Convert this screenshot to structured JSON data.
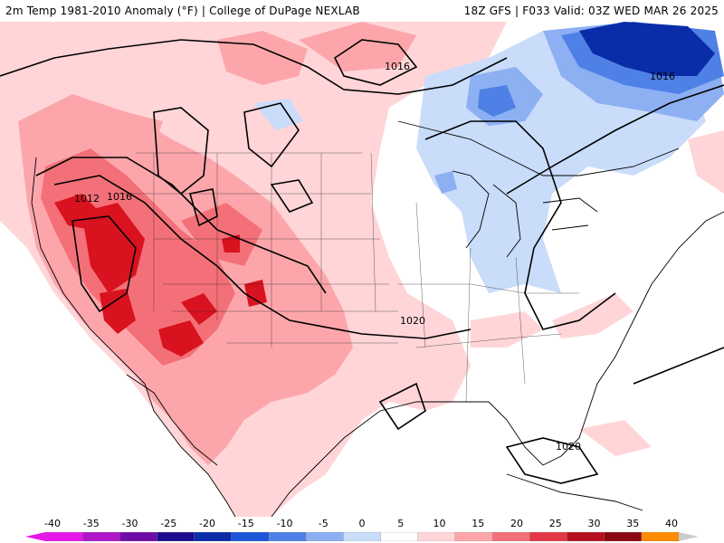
{
  "header": {
    "left": "2m Temp 1981-2010 Anomaly (°F) | College of DuPage NEXLAB",
    "right": "18Z GFS | F033 Valid: 03Z WED MAR 26 2025"
  },
  "isobar_labels": [
    "1016",
    "1016",
    "1012",
    "1016",
    "1020",
    "1020"
  ],
  "colorbar": {
    "ticks": [
      "-40",
      "-35",
      "-30",
      "-25",
      "-20",
      "-15",
      "-10",
      "-5",
      "0",
      "5",
      "10",
      "15",
      "20",
      "25",
      "30",
      "35",
      "40"
    ],
    "colors": [
      "#e617e6",
      "#b015c9",
      "#6f0ba8",
      "#1c0b8f",
      "#0a2ca8",
      "#1c55d6",
      "#4f80e6",
      "#8cb0f2",
      "#c9dcfa",
      "#ffffff",
      "#ffd5d8",
      "#fca6ab",
      "#f47078",
      "#e23845",
      "#b5101d",
      "#8a0610",
      "#ff8c00",
      "#ffc000",
      "#cccccc"
    ]
  },
  "colors": {
    "anomaly_warm_light": "#ffd5d8",
    "anomaly_warm_mid": "#fca6ab",
    "anomaly_warm_strong": "#f47078",
    "anomaly_warm_max": "#d9121f",
    "anomaly_cool_light": "#c9dcfa",
    "anomaly_cool_mid": "#8cb0f2",
    "anomaly_cool_strong": "#4f80e6",
    "anomaly_cool_max": "#0a2ca8"
  }
}
